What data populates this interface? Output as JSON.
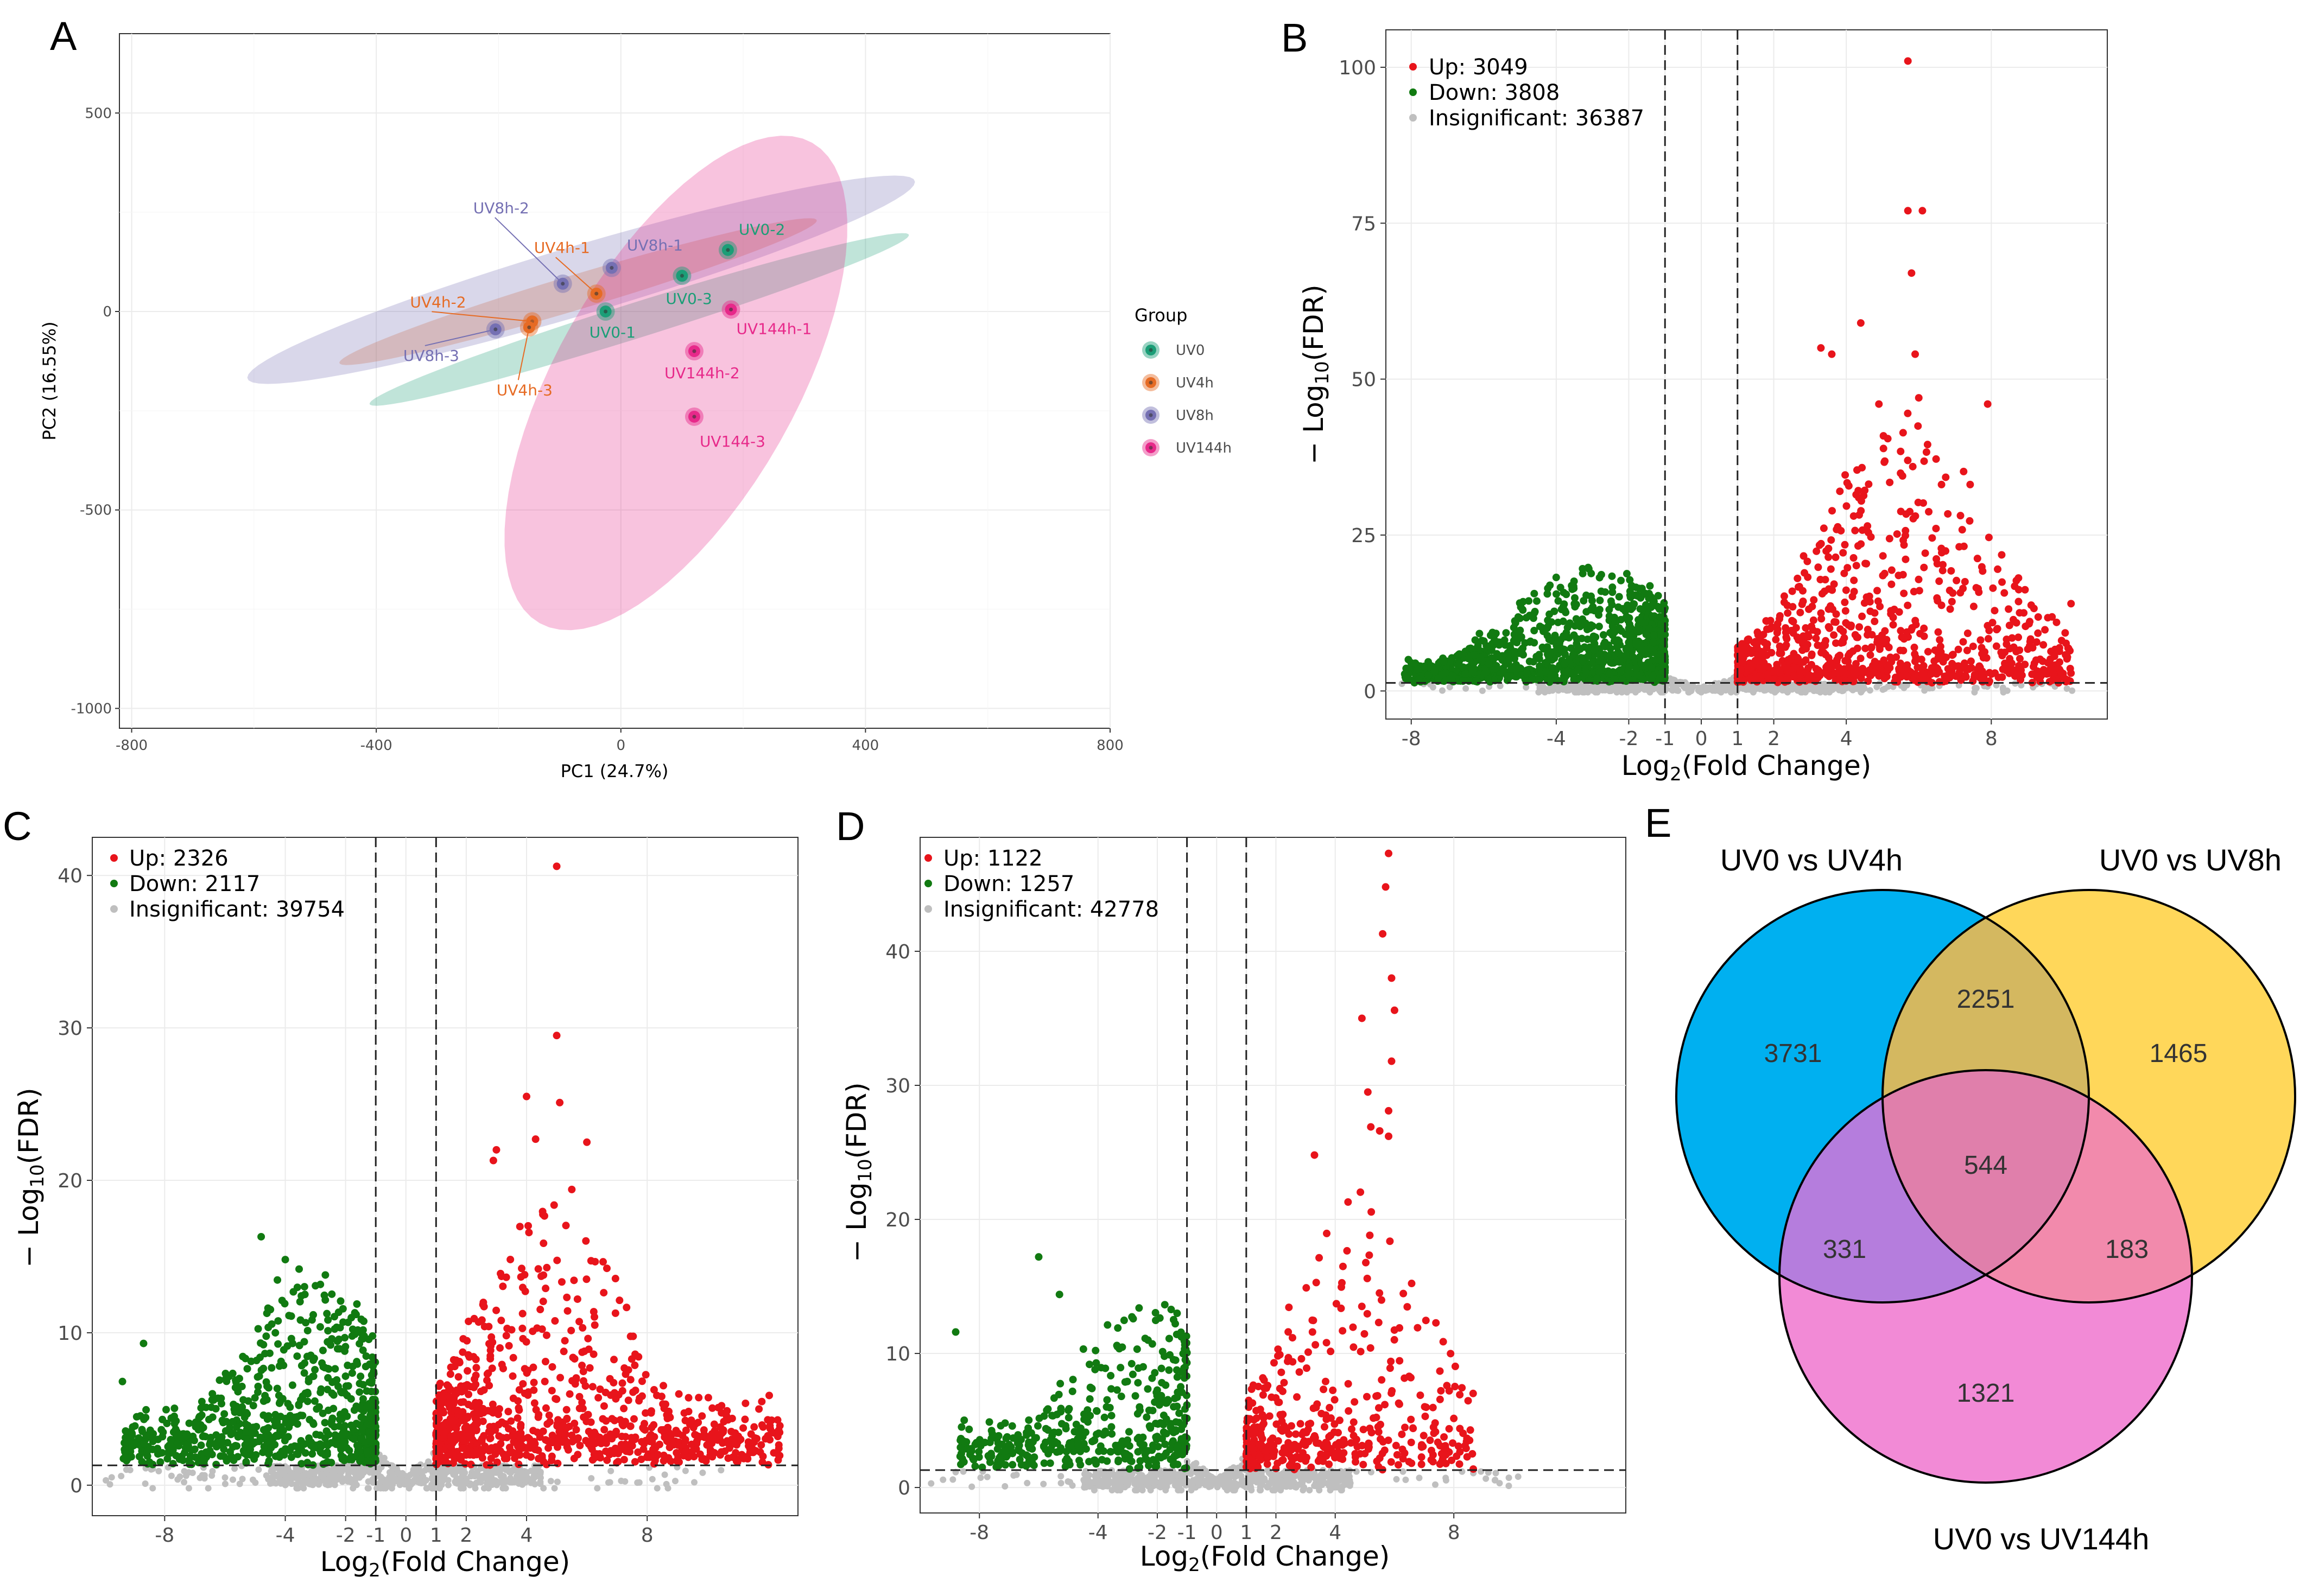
{
  "colors": {
    "up": "#e8141b",
    "down": "#117a11",
    "insignificant": "#bfbfbf",
    "UV0": "#1b9e77",
    "UV4h": "#e66b24",
    "UV8h": "#7570b3",
    "UV144h": "#e7298a",
    "venn_a": "#00b0f0",
    "venn_b": "#ffd75a",
    "venn_c": "#f28ad6"
  },
  "panel_letters": [
    "A",
    "B",
    "C",
    "D",
    "E"
  ],
  "chart_data": [
    {
      "panel": "A",
      "type": "scatter",
      "title": "",
      "xlabel": "PC1 (24.7%)",
      "ylabel": "PC2 (16.55%)",
      "xlim": [
        -820,
        800
      ],
      "ylim": [
        -1050,
        700
      ],
      "xticks": [
        -800,
        -400,
        0,
        400,
        800
      ],
      "xtick_labels": [
        "-800",
        "-400",
        "0",
        "400",
        "800"
      ],
      "yticks": [
        -1000,
        -500,
        0,
        500
      ],
      "ytick_labels": [
        "-1000",
        "-500",
        "0",
        "500"
      ],
      "legend_title": "Group",
      "legend": [
        "UV0",
        "UV4h",
        "UV8h",
        "UV144h"
      ],
      "ellipses": [
        {
          "group": "UV0",
          "cx": 30,
          "cy": -20,
          "rx": 490,
          "ry": 38,
          "angle": 26
        },
        {
          "group": "UV4h",
          "cx": -70,
          "cy": 50,
          "rx": 430,
          "ry": 38,
          "angle": 25
        },
        {
          "group": "UV8h",
          "cx": -65,
          "cy": 80,
          "rx": 600,
          "ry": 75,
          "angle": 25
        },
        {
          "group": "UV144h",
          "cx": 90,
          "cy": -180,
          "rx": 650,
          "ry": 140,
          "angle": 73
        }
      ],
      "points": [
        {
          "label": "UV0-1",
          "group": "UV0",
          "x": -25,
          "y": 0
        },
        {
          "label": "UV0-2",
          "group": "UV0",
          "x": 175,
          "y": 155
        },
        {
          "label": "UV0-3",
          "group": "UV0",
          "x": 100,
          "y": 90
        },
        {
          "label": "UV4h-1",
          "group": "UV4h",
          "x": -40,
          "y": 45
        },
        {
          "label": "UV4h-2",
          "group": "UV4h",
          "x": -145,
          "y": -25
        },
        {
          "label": "UV4h-3",
          "group": "UV4h",
          "x": -150,
          "y": -40
        },
        {
          "label": "UV8h-1",
          "group": "UV8h",
          "x": -15,
          "y": 110
        },
        {
          "label": "UV8h-2",
          "group": "UV8h",
          "x": -95,
          "y": 70
        },
        {
          "label": "UV8h-3",
          "group": "UV8h",
          "x": -205,
          "y": -45
        },
        {
          "label": "UV144h-1",
          "group": "UV144h",
          "x": 180,
          "y": 5
        },
        {
          "label": "UV144h-2",
          "group": "UV144h",
          "x": 120,
          "y": -100
        },
        {
          "label": "UV144-3",
          "group": "UV144h",
          "x": 120,
          "y": -265
        }
      ]
    },
    {
      "panel": "B",
      "type": "scatter",
      "xlabel": "Log2(Fold Change)",
      "ylabel": "−Log10(FDR)",
      "xlim": [
        -8.7,
        11.2
      ],
      "ylim": [
        -4.5,
        106
      ],
      "xticks": [
        -8,
        -4,
        -2,
        -1,
        0,
        1,
        2,
        4,
        8
      ],
      "xtick_labels": [
        "-8",
        "-4",
        "-2",
        "-1",
        "0",
        "1",
        "2",
        "4",
        "8"
      ],
      "yticks": [
        0,
        25,
        50,
        75,
        100
      ],
      "ytick_labels": [
        "0",
        "25",
        "50",
        "75",
        "100"
      ],
      "thresholds": {
        "fc": [
          -1,
          1
        ],
        "fdr": 1.3
      },
      "legend": [
        {
          "category": "up",
          "text": "Up: 3049"
        },
        {
          "category": "down",
          "text": "Down: 3808"
        },
        {
          "category": "insignificant",
          "text": "Insignificant: 36387"
        }
      ],
      "up": {
        "xmax": 10.2,
        "ymax": 101,
        "peak_x": 5.7,
        "seed": 11
      },
      "down": {
        "xmin": -8.2,
        "ymax": 25,
        "peak_x": -3.0,
        "seed": 12
      },
      "outliers": [
        [
          5.7,
          101
        ],
        [
          5.7,
          77
        ],
        [
          6.1,
          77
        ],
        [
          5.8,
          67
        ],
        [
          4.4,
          59
        ],
        [
          5.9,
          54
        ],
        [
          3.3,
          55
        ],
        [
          3.6,
          54
        ],
        [
          7.9,
          46
        ],
        [
          4.9,
          46
        ],
        [
          6.0,
          47
        ],
        [
          10.2,
          14
        ],
        [
          9.8,
          11
        ]
      ]
    },
    {
      "panel": "C",
      "type": "scatter",
      "xlabel": "Log2(Fold Change)",
      "ylabel": "−Log10(FDR)",
      "xlim": [
        -10.4,
        13.0
      ],
      "ylim": [
        -2.0,
        42.5
      ],
      "xticks": [
        -8,
        -4,
        -2,
        -1,
        0,
        1,
        2,
        4,
        8
      ],
      "xtick_labels": [
        "-8",
        "-4",
        "-2",
        "-1",
        "0",
        "1",
        "2",
        "4",
        "8"
      ],
      "yticks": [
        0,
        10,
        20,
        30,
        40
      ],
      "ytick_labels": [
        "0",
        "10",
        "20",
        "30",
        "40"
      ],
      "thresholds": {
        "fc": [
          -1,
          1
        ],
        "fdr": 1.3
      },
      "legend": [
        {
          "category": "up",
          "text": "Up: 2326"
        },
        {
          "category": "down",
          "text": "Down: 2117"
        },
        {
          "category": "insignificant",
          "text": "Insignificant: 39754"
        }
      ],
      "up": {
        "xmax": 12.4,
        "ymax": 40.6,
        "peak_x": 4.8,
        "seed": 21
      },
      "down": {
        "xmin": -9.4,
        "ymax": 16.3,
        "peak_x": -3.2,
        "seed": 22
      },
      "outliers": [
        [
          5.0,
          40.6
        ],
        [
          5.0,
          29.5
        ],
        [
          4.0,
          25.5
        ],
        [
          5.1,
          25.1
        ],
        [
          3.0,
          22.0
        ],
        [
          6.0,
          22.5
        ],
        [
          2.9,
          21.3
        ],
        [
          4.3,
          22.7
        ],
        [
          5.5,
          19.4
        ],
        [
          12.4,
          3.9
        ],
        [
          11.1,
          3.0
        ],
        [
          -9.4,
          6.8
        ],
        [
          -8.7,
          9.3
        ],
        [
          -4.8,
          16.3
        ],
        [
          -4.0,
          14.8
        ]
      ]
    },
    {
      "panel": "D",
      "type": "scatter",
      "xlabel": "Log2(Fold Change)",
      "ylabel": "−Log10(FDR)",
      "xlim": [
        -10.0,
        13.8
      ],
      "ylim": [
        -1.9,
        48.5
      ],
      "xticks": [
        -8,
        -4,
        -2,
        -1,
        0,
        1,
        2,
        4,
        8
      ],
      "xtick_labels": [
        "-8",
        "-4",
        "-2",
        "-1",
        "0",
        "1",
        "2",
        "4",
        "8"
      ],
      "yticks": [
        0,
        10,
        20,
        30,
        40
      ],
      "ytick_labels": [
        "0",
        "10",
        "20",
        "30",
        "40"
      ],
      "thresholds": {
        "fc": [
          -1,
          1
        ],
        "fdr": 1.3
      },
      "legend": [
        {
          "category": "up",
          "text": "Up: 1122"
        },
        {
          "category": "down",
          "text": "Down: 1257"
        },
        {
          "category": "insignificant",
          "text": "Insignificant: 42778"
        }
      ],
      "up": {
        "xmax": 8.7,
        "ymax": 47.3,
        "peak_x": 5.0,
        "seed": 31
      },
      "down": {
        "xmin": -8.8,
        "ymax": 17.2,
        "peak_x": -2.4,
        "seed": 32
      },
      "outliers": [
        [
          5.8,
          47.3
        ],
        [
          5.7,
          44.8
        ],
        [
          5.6,
          41.3
        ],
        [
          5.9,
          38.0
        ],
        [
          6.0,
          35.6
        ],
        [
          4.9,
          35.0
        ],
        [
          5.9,
          31.8
        ],
        [
          5.1,
          29.5
        ],
        [
          5.8,
          28.1
        ],
        [
          5.5,
          26.6
        ],
        [
          5.8,
          26.2
        ],
        [
          5.2,
          26.9
        ],
        [
          3.3,
          24.8
        ],
        [
          -8.8,
          11.6
        ],
        [
          -6.0,
          17.2
        ],
        [
          -5.3,
          14.4
        ]
      ]
    }
  ],
  "venn": {
    "panel": "E",
    "sets": [
      {
        "label": "UV0 vs UV4h",
        "key": "venn_a"
      },
      {
        "label": "UV0 vs UV8h",
        "key": "venn_b"
      },
      {
        "label": "UV0 vs UV144h",
        "key": "venn_c"
      }
    ],
    "regions": [
      {
        "region": "A only",
        "value": "3731"
      },
      {
        "region": "A∩B",
        "value": "2251"
      },
      {
        "region": "B only",
        "value": "1465"
      },
      {
        "region": "A∩B∩C",
        "value": "544"
      },
      {
        "region": "A∩C",
        "value": "331"
      },
      {
        "region": "B∩C",
        "value": "183"
      },
      {
        "region": "C only",
        "value": "1321"
      }
    ]
  }
}
